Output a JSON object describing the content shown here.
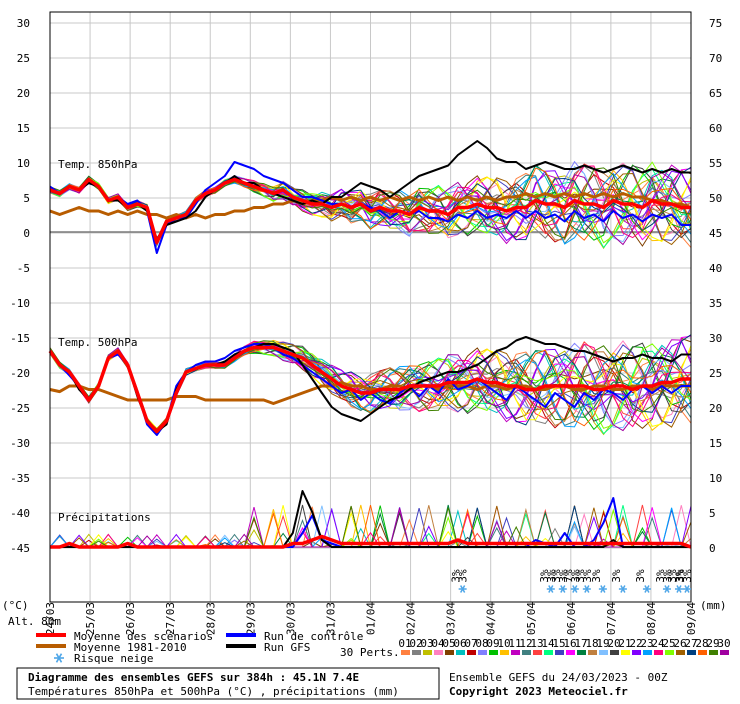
{
  "chart_data": {
    "type": "line",
    "x_labels": [
      "24/03",
      "25/03",
      "26/03",
      "27/03",
      "28/03",
      "29/03",
      "30/03",
      "31/03",
      "01/04",
      "02/04",
      "03/04",
      "04/04",
      "05/04",
      "06/04",
      "07/04",
      "08/04",
      "09/04"
    ],
    "left_ticks": [
      "30",
      "25",
      "20",
      "15",
      "10",
      "5",
      "0",
      "-5",
      "-10",
      "-15",
      "-20",
      "-25",
      "-30",
      "-35",
      "-40",
      "-45"
    ],
    "right_ticks": [
      "75",
      "70",
      "65",
      "60",
      "55",
      "50",
      "45",
      "40",
      "35",
      "30",
      "25",
      "20",
      "15",
      "10",
      "5",
      "0"
    ],
    "left_unit": "(°C)",
    "right_unit": "(mm)",
    "altitude_label": "Alt. 80m",
    "panel_labels": {
      "t850": "Temp. 850hPa",
      "t500": "Temp. 500hPa",
      "precip": "Précipitations"
    },
    "series": [
      {
        "name": "Moyenne des scénarios",
        "panel": "t850",
        "values": [
          6,
          5.5,
          6.5,
          6,
          7.5,
          6.5,
          4.5,
          5,
          3.5,
          4,
          3.5,
          -1.5,
          1.5,
          2,
          2.5,
          4.5,
          5.5,
          6,
          7,
          7.5,
          7,
          6.5,
          6,
          5.5,
          6,
          5,
          4.5,
          4,
          4,
          3.5,
          4,
          3.5,
          4,
          3,
          3.5,
          3,
          3,
          2.5,
          3.5,
          3,
          3,
          2.5,
          3.5,
          3.5,
          4,
          3.5,
          3.5,
          3,
          3.5,
          3.5,
          4.5,
          4,
          4,
          3.5,
          4.5,
          4,
          4,
          3.5,
          4.5,
          4,
          4,
          3.5,
          4.5,
          4,
          4,
          3.5,
          3.5
        ]
      },
      {
        "name": "Moyenne 1981-2010",
        "panel": "t850",
        "values": [
          3,
          2.5,
          3,
          3.5,
          3,
          3,
          2.5,
          3,
          2.5,
          3,
          2.5,
          2.5,
          2,
          2.5,
          2,
          2.5,
          2,
          2.5,
          2.5,
          3,
          3,
          3.5,
          3.5,
          4,
          4,
          4.5,
          4,
          4.5,
          4.5,
          5,
          4.5,
          5,
          4.5,
          5,
          4.5,
          5,
          4.5,
          5,
          4.5,
          5,
          4.5,
          5,
          4.5,
          5,
          4.5,
          5,
          4.5,
          5,
          5,
          5.5,
          5,
          5.5,
          5,
          5.5,
          5,
          5.5,
          5,
          5.5,
          5,
          5.5,
          5,
          5,
          4.5,
          4.5,
          4,
          4,
          3.5
        ]
      },
      {
        "name": "Run de contrôle",
        "panel": "t850",
        "values": [
          6.5,
          5.5,
          6.5,
          6,
          7,
          6.5,
          4.5,
          5,
          4,
          4.5,
          3,
          -3,
          1,
          2,
          2,
          4,
          6,
          7,
          8,
          10,
          9.5,
          9,
          8,
          7.5,
          7,
          6,
          5,
          5,
          4.5,
          4,
          4,
          3.5,
          4,
          3.5,
          3,
          2,
          3,
          2.5,
          3,
          2,
          2,
          1.5,
          2.5,
          2,
          3,
          2,
          2.5,
          2,
          3,
          2,
          3,
          2,
          2.5,
          1.5,
          3,
          2,
          2.5,
          1.5,
          3,
          2,
          2.5,
          1.5,
          2.5,
          2,
          2.5,
          1,
          1
        ]
      },
      {
        "name": "Run GFS",
        "panel": "t850",
        "values": [
          6,
          5.5,
          6.5,
          6,
          7,
          6.5,
          4.5,
          4.5,
          3.5,
          4,
          3,
          -1,
          1,
          1.5,
          2,
          3,
          5,
          6,
          7,
          8,
          7,
          7,
          6,
          5.5,
          5,
          4.5,
          4,
          4.5,
          4,
          5,
          5,
          6,
          7,
          6.5,
          6,
          5,
          6,
          7,
          8,
          8.5,
          9,
          9.5,
          11,
          12,
          13,
          12,
          10.5,
          10,
          10,
          9,
          9.5,
          10,
          9.5,
          9,
          9,
          9.5,
          9,
          8.5,
          9,
          9.5,
          9,
          8.5,
          9,
          8.5,
          9,
          8.5,
          8.5
        ]
      },
      {
        "name": "Moyenne des scénarios",
        "panel": "t500",
        "values": [
          -17,
          -19,
          -20,
          -22,
          -24,
          -22,
          -18,
          -17,
          -19,
          -23,
          -27,
          -28.5,
          -27,
          -23,
          -20,
          -19.5,
          -19,
          -19,
          -19,
          -18,
          -17,
          -16.5,
          -16.5,
          -16.5,
          -17,
          -17.5,
          -18,
          -19,
          -20,
          -21,
          -22,
          -22.5,
          -23,
          -23,
          -22.5,
          -22.5,
          -22.5,
          -22,
          -22,
          -22,
          -22,
          -21.5,
          -21.5,
          -21.5,
          -21,
          -21.5,
          -21.5,
          -22,
          -22,
          -22.5,
          -22.5,
          -22,
          -22,
          -22,
          -22,
          -22,
          -22.5,
          -22.5,
          -22,
          -22,
          -22.5,
          -22,
          -22,
          -21.5,
          -21.5,
          -21,
          -21
        ]
      },
      {
        "name": "Moyenne 1981-2010",
        "panel": "t500",
        "values": [
          -22.5,
          -22.8,
          -22,
          -22,
          -22.5,
          -22.5,
          -23,
          -23.5,
          -24,
          -24,
          -24,
          -24,
          -24,
          -23.5,
          -23.5,
          -23.5,
          -24,
          -24,
          -24,
          -24,
          -24,
          -24,
          -24,
          -24.5,
          -24,
          -23.5,
          -23,
          -22.5,
          -22,
          -22,
          -21.5,
          -22,
          -22,
          -22.5,
          -22.5,
          -22,
          -22,
          -22.5,
          -22,
          -22,
          -22.5,
          -22,
          -22,
          -22,
          -22.5,
          -22,
          -22,
          -22.5,
          -22,
          -22,
          -22.5,
          -22.5,
          -22,
          -22,
          -22.5,
          -22.5,
          -22,
          -22,
          -22.5,
          -22.5,
          -22,
          -22,
          -22.5,
          -22,
          -22,
          -22,
          -22
        ]
      },
      {
        "name": "Run de contrôle",
        "panel": "t500",
        "values": [
          -17,
          -19,
          -20.5,
          -22,
          -24,
          -22,
          -18,
          -17.5,
          -19,
          -23,
          -27.5,
          -29,
          -27,
          -22,
          -20,
          -19,
          -18.5,
          -18.5,
          -18,
          -17,
          -16.5,
          -16,
          -16,
          -16.5,
          -17.5,
          -18,
          -19,
          -20,
          -21,
          -22,
          -23,
          -22.5,
          -24,
          -23,
          -24,
          -24.5,
          -23,
          -22,
          -23.5,
          -22,
          -23,
          -21,
          -22.5,
          -22,
          -21,
          -22,
          -23,
          -24,
          -22,
          -23,
          -24,
          -25,
          -23,
          -24,
          -25,
          -23,
          -24,
          -22.5,
          -23,
          -24,
          -22.5,
          -22,
          -23,
          -22,
          -23,
          -22,
          -22
        ]
      },
      {
        "name": "Run GFS",
        "panel": "t500",
        "values": [
          -17,
          -19,
          -20,
          -22.5,
          -24,
          -22,
          -18,
          -17,
          -19,
          -23.5,
          -27,
          -28.5,
          -27.5,
          -22.5,
          -20,
          -19.5,
          -19,
          -19,
          -18.5,
          -17.5,
          -17,
          -16.5,
          -16,
          -16,
          -16.5,
          -17,
          -19,
          -21,
          -23,
          -25,
          -26,
          -26.5,
          -27,
          -26,
          -25,
          -24,
          -23.5,
          -22.5,
          -21.5,
          -21,
          -20.5,
          -20,
          -20,
          -19.5,
          -19,
          -18,
          -17,
          -16.5,
          -15.5,
          -15,
          -15.5,
          -16,
          -16,
          -16.5,
          -17,
          -17,
          -17.5,
          -18,
          -18.5,
          -18,
          -18,
          -17.5,
          -18,
          -18,
          -18.5,
          -17.5,
          -17.5
        ]
      },
      {
        "name": "Moyenne des scénarios",
        "panel": "precip",
        "values": [
          0,
          0,
          0.5,
          0,
          0,
          0,
          0,
          0,
          0.5,
          0,
          0,
          0,
          0,
          0,
          0,
          0,
          0,
          0,
          0,
          0,
          0,
          0,
          0,
          0,
          0,
          0.5,
          0.5,
          1,
          1.5,
          1,
          0.5,
          0.5,
          0.5,
          0.5,
          0.5,
          0.5,
          0.5,
          0.5,
          0.5,
          0.5,
          0.5,
          0.5,
          1,
          0.5,
          0.5,
          0.5,
          0.5,
          0.5,
          0.5,
          0.5,
          0.5,
          0.5,
          0.5,
          0.5,
          0.5,
          0.5,
          0.5,
          0.5,
          0.5,
          0.5,
          0.5,
          0.5,
          0.5,
          0.5,
          0.5,
          0.5,
          0
        ]
      },
      {
        "name": "Run de contrôle",
        "panel": "precip",
        "values": [
          0,
          0,
          0,
          0,
          0,
          0,
          0,
          0,
          0,
          0,
          0,
          0,
          0,
          0,
          0,
          0,
          0,
          0,
          0,
          0,
          0,
          0,
          0,
          0,
          0,
          0,
          2,
          4.5,
          1,
          0.5,
          0,
          0,
          0,
          0,
          0,
          0,
          0,
          0,
          0,
          0,
          0,
          0,
          0,
          0,
          0,
          0,
          0,
          0,
          0,
          0,
          1,
          0.5,
          0,
          2,
          0,
          0,
          1,
          3.5,
          7,
          0,
          0,
          0,
          0,
          0,
          0,
          0,
          0
        ]
      },
      {
        "name": "Run GFS",
        "panel": "precip",
        "values": [
          0,
          0,
          0,
          0,
          0,
          0,
          0,
          0,
          0,
          0,
          0,
          0,
          0,
          0,
          0,
          0,
          0,
          0,
          0,
          0,
          0,
          0,
          0,
          0,
          0,
          2,
          8,
          5,
          1,
          0,
          0,
          0,
          0,
          0,
          0,
          0,
          0,
          0,
          0,
          0,
          0,
          0,
          0,
          0,
          0,
          0,
          0,
          0,
          0,
          0,
          0,
          0,
          0,
          0,
          0,
          0,
          0,
          0,
          1,
          0,
          0,
          0,
          0,
          0,
          0,
          0,
          0
        ]
      }
    ],
    "snow_risk_days": [
      {
        "at": 10.3,
        "rows": [
          "3%",
          "3%"
        ]
      },
      {
        "at": 12.5,
        "rows": [
          "3%",
          "3%"
        ]
      },
      {
        "at": 12.8,
        "rows": [
          "3%",
          "3%"
        ]
      },
      {
        "at": 13.1,
        "rows": [
          "7%",
          "3%"
        ]
      },
      {
        "at": 13.4,
        "rows": [
          "3%",
          "3%"
        ]
      },
      {
        "at": 13.8,
        "rows": [
          "3%"
        ]
      },
      {
        "at": 14.3,
        "rows": [
          "3%"
        ]
      },
      {
        "at": 14.9,
        "rows": [
          "3%"
        ]
      },
      {
        "at": 15.4,
        "rows": [
          "3%",
          "3%"
        ]
      },
      {
        "at": 15.7,
        "rows": [
          "3%",
          "3%"
        ]
      },
      {
        "at": 15.9,
        "rows": [
          "3%",
          "3%"
        ]
      }
    ]
  },
  "legend": {
    "mean": "Moyenne des scénarios",
    "clim": "Moyenne 1981-2010",
    "snow": "Risque neige",
    "control": "Run de contrôle",
    "gfs": "Run GFS",
    "perts_label": "30 Perts.",
    "perts": [
      "01",
      "02",
      "03",
      "04",
      "05",
      "06",
      "07",
      "08",
      "09",
      "10",
      "11",
      "12",
      "13",
      "14",
      "15",
      "16",
      "17",
      "18",
      "19",
      "20",
      "21",
      "22",
      "23",
      "24",
      "25",
      "26",
      "27",
      "28",
      "29",
      "30"
    ],
    "pert_colors": [
      "#ff8040",
      "#808080",
      "#c0c000",
      "#ff80c0",
      "#804000",
      "#00c0c0",
      "#c00000",
      "#8080ff",
      "#00c000",
      "#ffc000",
      "#c000c0",
      "#408080",
      "#ff4040",
      "#00ff80",
      "#4040c0",
      "#ff00ff",
      "#008040",
      "#c08040",
      "#80c0ff",
      "#404040",
      "#ffff00",
      "#8000ff",
      "#00a0ff",
      "#ff0080",
      "#80ff00",
      "#a06000",
      "#004080",
      "#ff6000",
      "#408000",
      "#a000a0"
    ],
    "colors": {
      "mean": "#ff0000",
      "clim": "#b85c00",
      "control": "#0000ff",
      "gfs": "#000000",
      "snow": "#4ea6e8"
    }
  },
  "footer": {
    "title": "Diagramme des ensembles GEFS sur 384h : 45.1N 7.4E",
    "subtitle": "Températures 850hPa et 500hPa (°C) , précipitations (mm)",
    "run": "Ensemble GEFS du 24/03/2023 - 00Z",
    "copyright": "Copyright 2023 Meteociel.fr"
  }
}
